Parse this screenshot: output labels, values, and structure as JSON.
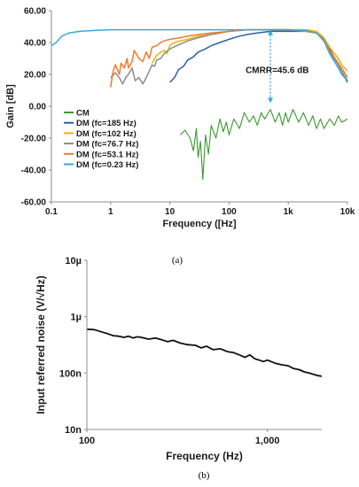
{
  "captions": {
    "a": "(a)",
    "b": "(b)"
  },
  "chart_data": [
    {
      "type": "line",
      "panel": "a",
      "xlabel": "Frequency ([Hz]",
      "ylabel": "Gain [dB]",
      "x_scale": "log",
      "xlim": [
        0.1,
        10000
      ],
      "ylim": [
        -60,
        60
      ],
      "x_ticks": [
        {
          "value": 0.1,
          "label": "0.1"
        },
        {
          "value": 1,
          "label": "1"
        },
        {
          "value": 10,
          "label": "10"
        },
        {
          "value": 100,
          "label": "100"
        },
        {
          "value": 1000,
          "label": "1k"
        },
        {
          "value": 10000,
          "label": "10k"
        }
      ],
      "y_ticks": [
        {
          "value": 60,
          "label": "60.00"
        },
        {
          "value": 40,
          "label": "40.00"
        },
        {
          "value": 20,
          "label": "20.00"
        },
        {
          "value": 0,
          "label": "0.00"
        },
        {
          "value": -20,
          "label": "-20.00"
        },
        {
          "value": -40,
          "label": "-40.00"
        },
        {
          "value": -60,
          "label": "-60.00"
        }
      ],
      "grid": false,
      "legend_position": "lower-left",
      "annotation": {
        "text": "CMRR=45.6 dB",
        "x": 500,
        "y_top": 48,
        "y_bottom": 2
      },
      "series": [
        {
          "name": "CM",
          "color": "#3a9a2e",
          "points": [
            [
              15,
              -18
            ],
            [
              18,
              -15
            ],
            [
              22,
              -20
            ],
            [
              25,
              -28
            ],
            [
              28,
              -14
            ],
            [
              30,
              -32
            ],
            [
              33,
              -22
            ],
            [
              36,
              -46
            ],
            [
              40,
              -18
            ],
            [
              45,
              -30
            ],
            [
              50,
              -12
            ],
            [
              60,
              -20
            ],
            [
              70,
              -8
            ],
            [
              80,
              -16
            ],
            [
              90,
              -10
            ],
            [
              100,
              -18
            ],
            [
              120,
              -8
            ],
            [
              150,
              -14
            ],
            [
              180,
              -4
            ],
            [
              220,
              -10
            ],
            [
              260,
              -6
            ],
            [
              300,
              -12
            ],
            [
              350,
              -4
            ],
            [
              400,
              -8
            ],
            [
              500,
              -2
            ],
            [
              600,
              -10
            ],
            [
              700,
              -4
            ],
            [
              800,
              -12
            ],
            [
              900,
              -4
            ],
            [
              1000,
              -10
            ],
            [
              1200,
              -2
            ],
            [
              1500,
              -10
            ],
            [
              1800,
              -4
            ],
            [
              2200,
              -12
            ],
            [
              2600,
              -6
            ],
            [
              3000,
              -14
            ],
            [
              3500,
              -8
            ],
            [
              4000,
              -14
            ],
            [
              5000,
              -8
            ],
            [
              6000,
              -12
            ],
            [
              7000,
              -6
            ],
            [
              8000,
              -10
            ],
            [
              10000,
              -8
            ]
          ]
        },
        {
          "name": "DM (fc=185 Hz)",
          "color": "#2a5faa",
          "points": [
            [
              10,
              15
            ],
            [
              12,
              18
            ],
            [
              14,
              23
            ],
            [
              17,
              25
            ],
            [
              20,
              29
            ],
            [
              25,
              31
            ],
            [
              30,
              34
            ],
            [
              40,
              36
            ],
            [
              50,
              38
            ],
            [
              70,
              40
            ],
            [
              100,
              42
            ],
            [
              150,
              44
            ],
            [
              200,
              45
            ],
            [
              300,
              46
            ],
            [
              500,
              47
            ],
            [
              1000,
              47
            ],
            [
              2000,
              47
            ],
            [
              3000,
              46
            ],
            [
              4000,
              42
            ],
            [
              5000,
              36
            ],
            [
              7000,
              26
            ],
            [
              8000,
              22
            ],
            [
              10000,
              15
            ]
          ]
        },
        {
          "name": "DM (fc=102 Hz)",
          "color": "#e8b30a",
          "points": [
            [
              5,
              27
            ],
            [
              6,
              32
            ],
            [
              7,
              34
            ],
            [
              8,
              35
            ],
            [
              9,
              33
            ],
            [
              10,
              38
            ],
            [
              12,
              40
            ],
            [
              15,
              41
            ],
            [
              20,
              42
            ],
            [
              30,
              44
            ],
            [
              50,
              45
            ],
            [
              70,
              46
            ],
            [
              100,
              47
            ],
            [
              200,
              48
            ],
            [
              500,
              48
            ],
            [
              1000,
              48
            ],
            [
              2000,
              48
            ],
            [
              3000,
              47
            ],
            [
              4000,
              43
            ],
            [
              5000,
              37
            ],
            [
              7000,
              30
            ],
            [
              8000,
              26
            ],
            [
              10000,
              22
            ]
          ]
        },
        {
          "name": "DM (fc=76.7 Hz)",
          "color": "#8c8c8c",
          "points": [
            [
              1,
              18
            ],
            [
              1.2,
              21
            ],
            [
              1.4,
              18
            ],
            [
              1.6,
              14
            ],
            [
              1.8,
              18
            ],
            [
              2,
              20
            ],
            [
              2.3,
              24
            ],
            [
              2.6,
              16
            ],
            [
              3,
              18
            ],
            [
              3.5,
              14
            ],
            [
              4,
              18
            ],
            [
              4.5,
              22
            ],
            [
              5,
              26
            ],
            [
              5.5,
              25
            ],
            [
              6,
              29
            ],
            [
              7,
              30
            ],
            [
              8,
              33
            ],
            [
              10,
              36
            ],
            [
              15,
              39
            ],
            [
              20,
              41
            ],
            [
              30,
              43
            ],
            [
              50,
              45
            ],
            [
              100,
              47
            ],
            [
              200,
              48
            ],
            [
              500,
              48
            ],
            [
              1000,
              48
            ],
            [
              2000,
              47
            ],
            [
              3000,
              46
            ],
            [
              4000,
              41
            ],
            [
              5000,
              34
            ],
            [
              7000,
              26
            ],
            [
              8000,
              22
            ],
            [
              10000,
              16
            ]
          ]
        },
        {
          "name": "DM (fc=53.1 Hz)",
          "color": "#f07a2a",
          "points": [
            [
              1,
              12
            ],
            [
              1.1,
              22
            ],
            [
              1.2,
              26
            ],
            [
              1.4,
              20
            ],
            [
              1.5,
              27
            ],
            [
              1.7,
              24
            ],
            [
              1.9,
              30
            ],
            [
              2,
              24
            ],
            [
              2.3,
              28
            ],
            [
              2.5,
              35
            ],
            [
              3,
              30
            ],
            [
              3.5,
              28
            ],
            [
              4,
              34
            ],
            [
              4.5,
              30
            ],
            [
              5,
              37
            ],
            [
              6,
              38
            ],
            [
              7,
              40
            ],
            [
              8,
              41
            ],
            [
              10,
              42
            ],
            [
              15,
              43
            ],
            [
              20,
              44
            ],
            [
              30,
              45
            ],
            [
              50,
              46
            ],
            [
              100,
              47
            ],
            [
              200,
              48
            ],
            [
              500,
              48
            ],
            [
              1000,
              48
            ],
            [
              2000,
              47
            ],
            [
              3000,
              46
            ],
            [
              4000,
              42
            ],
            [
              5000,
              35
            ],
            [
              7000,
              27
            ],
            [
              8000,
              24
            ],
            [
              10000,
              18
            ]
          ]
        },
        {
          "name": "DM (fc=0.23 Hz)",
          "color": "#3aa6e0",
          "points": [
            [
              0.1,
              38
            ],
            [
              0.12,
              40
            ],
            [
              0.15,
              44
            ],
            [
              0.2,
              46
            ],
            [
              0.3,
              47
            ],
            [
              0.5,
              47.5
            ],
            [
              1,
              48
            ],
            [
              3,
              48
            ],
            [
              10,
              48
            ],
            [
              30,
              48
            ],
            [
              100,
              48
            ],
            [
              300,
              48
            ],
            [
              1000,
              48
            ],
            [
              2000,
              47.5
            ],
            [
              3000,
              46
            ],
            [
              4000,
              41
            ],
            [
              5000,
              33
            ],
            [
              7000,
              24
            ],
            [
              8000,
              20
            ],
            [
              10000,
              16
            ]
          ]
        }
      ]
    },
    {
      "type": "line",
      "panel": "b",
      "xlabel": "Frequency (Hz)",
      "ylabel": "Input referred noise (V/√Hz)",
      "x_scale": "log",
      "y_scale": "log",
      "xlim": [
        100,
        2000
      ],
      "ylim": [
        1e-08,
        1e-05
      ],
      "x_ticks": [
        {
          "value": 100,
          "label": "100"
        },
        {
          "value": 1000,
          "label": "1,000"
        }
      ],
      "y_ticks": [
        {
          "value": 1e-05,
          "label": "10µ"
        },
        {
          "value": 1e-06,
          "label": "1µ"
        },
        {
          "value": 1e-07,
          "label": "100n"
        },
        {
          "value": 1e-08,
          "label": "10n"
        }
      ],
      "grid": false,
      "series": [
        {
          "color": "#111111",
          "points": [
            [
              100,
              6e-07
            ],
            [
              110,
              5.9e-07
            ],
            [
              120,
              5.4e-07
            ],
            [
              130,
              5e-07
            ],
            [
              140,
              4.6e-07
            ],
            [
              150,
              4.5e-07
            ],
            [
              160,
              4.3e-07
            ],
            [
              170,
              4.5e-07
            ],
            [
              180,
              4.2e-07
            ],
            [
              190,
              4.4e-07
            ],
            [
              200,
              4.3e-07
            ],
            [
              220,
              4e-07
            ],
            [
              240,
              4.2e-07
            ],
            [
              260,
              3.9e-07
            ],
            [
              280,
              3.6e-07
            ],
            [
              300,
              3.8e-07
            ],
            [
              330,
              3.4e-07
            ],
            [
              360,
              3.2e-07
            ],
            [
              400,
              3.1e-07
            ],
            [
              430,
              2.8e-07
            ],
            [
              460,
              3e-07
            ],
            [
              500,
              2.6e-07
            ],
            [
              550,
              2.7e-07
            ],
            [
              600,
              2.4e-07
            ],
            [
              650,
              2.3e-07
            ],
            [
              700,
              2.1e-07
            ],
            [
              750,
              1.9e-07
            ],
            [
              800,
              2.1e-07
            ],
            [
              850,
              1.8e-07
            ],
            [
              900,
              1.7e-07
            ],
            [
              950,
              1.6e-07
            ],
            [
              1000,
              1.7e-07
            ],
            [
              1100,
              1.5e-07
            ],
            [
              1200,
              1.4e-07
            ],
            [
              1300,
              1.35e-07
            ],
            [
              1400,
              1.2e-07
            ],
            [
              1500,
              1.15e-07
            ],
            [
              1600,
              1.05e-07
            ],
            [
              1700,
              1e-07
            ],
            [
              1800,
              9.5e-08
            ],
            [
              1900,
              9e-08
            ],
            [
              2000,
              8.8e-08
            ]
          ]
        }
      ]
    }
  ]
}
